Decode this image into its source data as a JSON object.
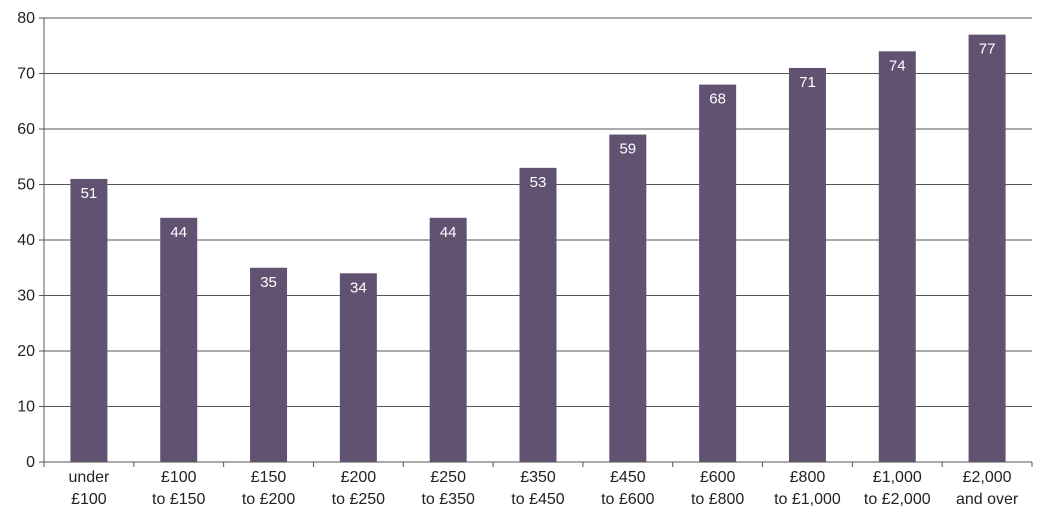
{
  "chart_data": {
    "type": "bar",
    "categories": [
      [
        "under",
        "£100"
      ],
      [
        "£100",
        "to £150"
      ],
      [
        "£150",
        "to £200"
      ],
      [
        "£200",
        "to £250"
      ],
      [
        "£250",
        "to £350"
      ],
      [
        "£350",
        "to £450"
      ],
      [
        "£450",
        "to £600"
      ],
      [
        "£600",
        "to £800"
      ],
      [
        "£800",
        "to £1,000"
      ],
      [
        "£1,000",
        "to £2,000"
      ],
      [
        "£2,000",
        "and over"
      ]
    ],
    "values": [
      51,
      44,
      35,
      34,
      44,
      53,
      59,
      68,
      71,
      74,
      77
    ],
    "data_labels": [
      "51",
      "44",
      "35",
      "34",
      "44",
      "53",
      "59",
      "68",
      "71",
      "74",
      "77"
    ],
    "ylim": [
      0,
      80
    ],
    "yticks": [
      0,
      10,
      20,
      30,
      40,
      50,
      60,
      70,
      80
    ],
    "grid": true,
    "bar_color": "#625272",
    "grid_color": "#555555",
    "label_color": "#ffffff"
  }
}
